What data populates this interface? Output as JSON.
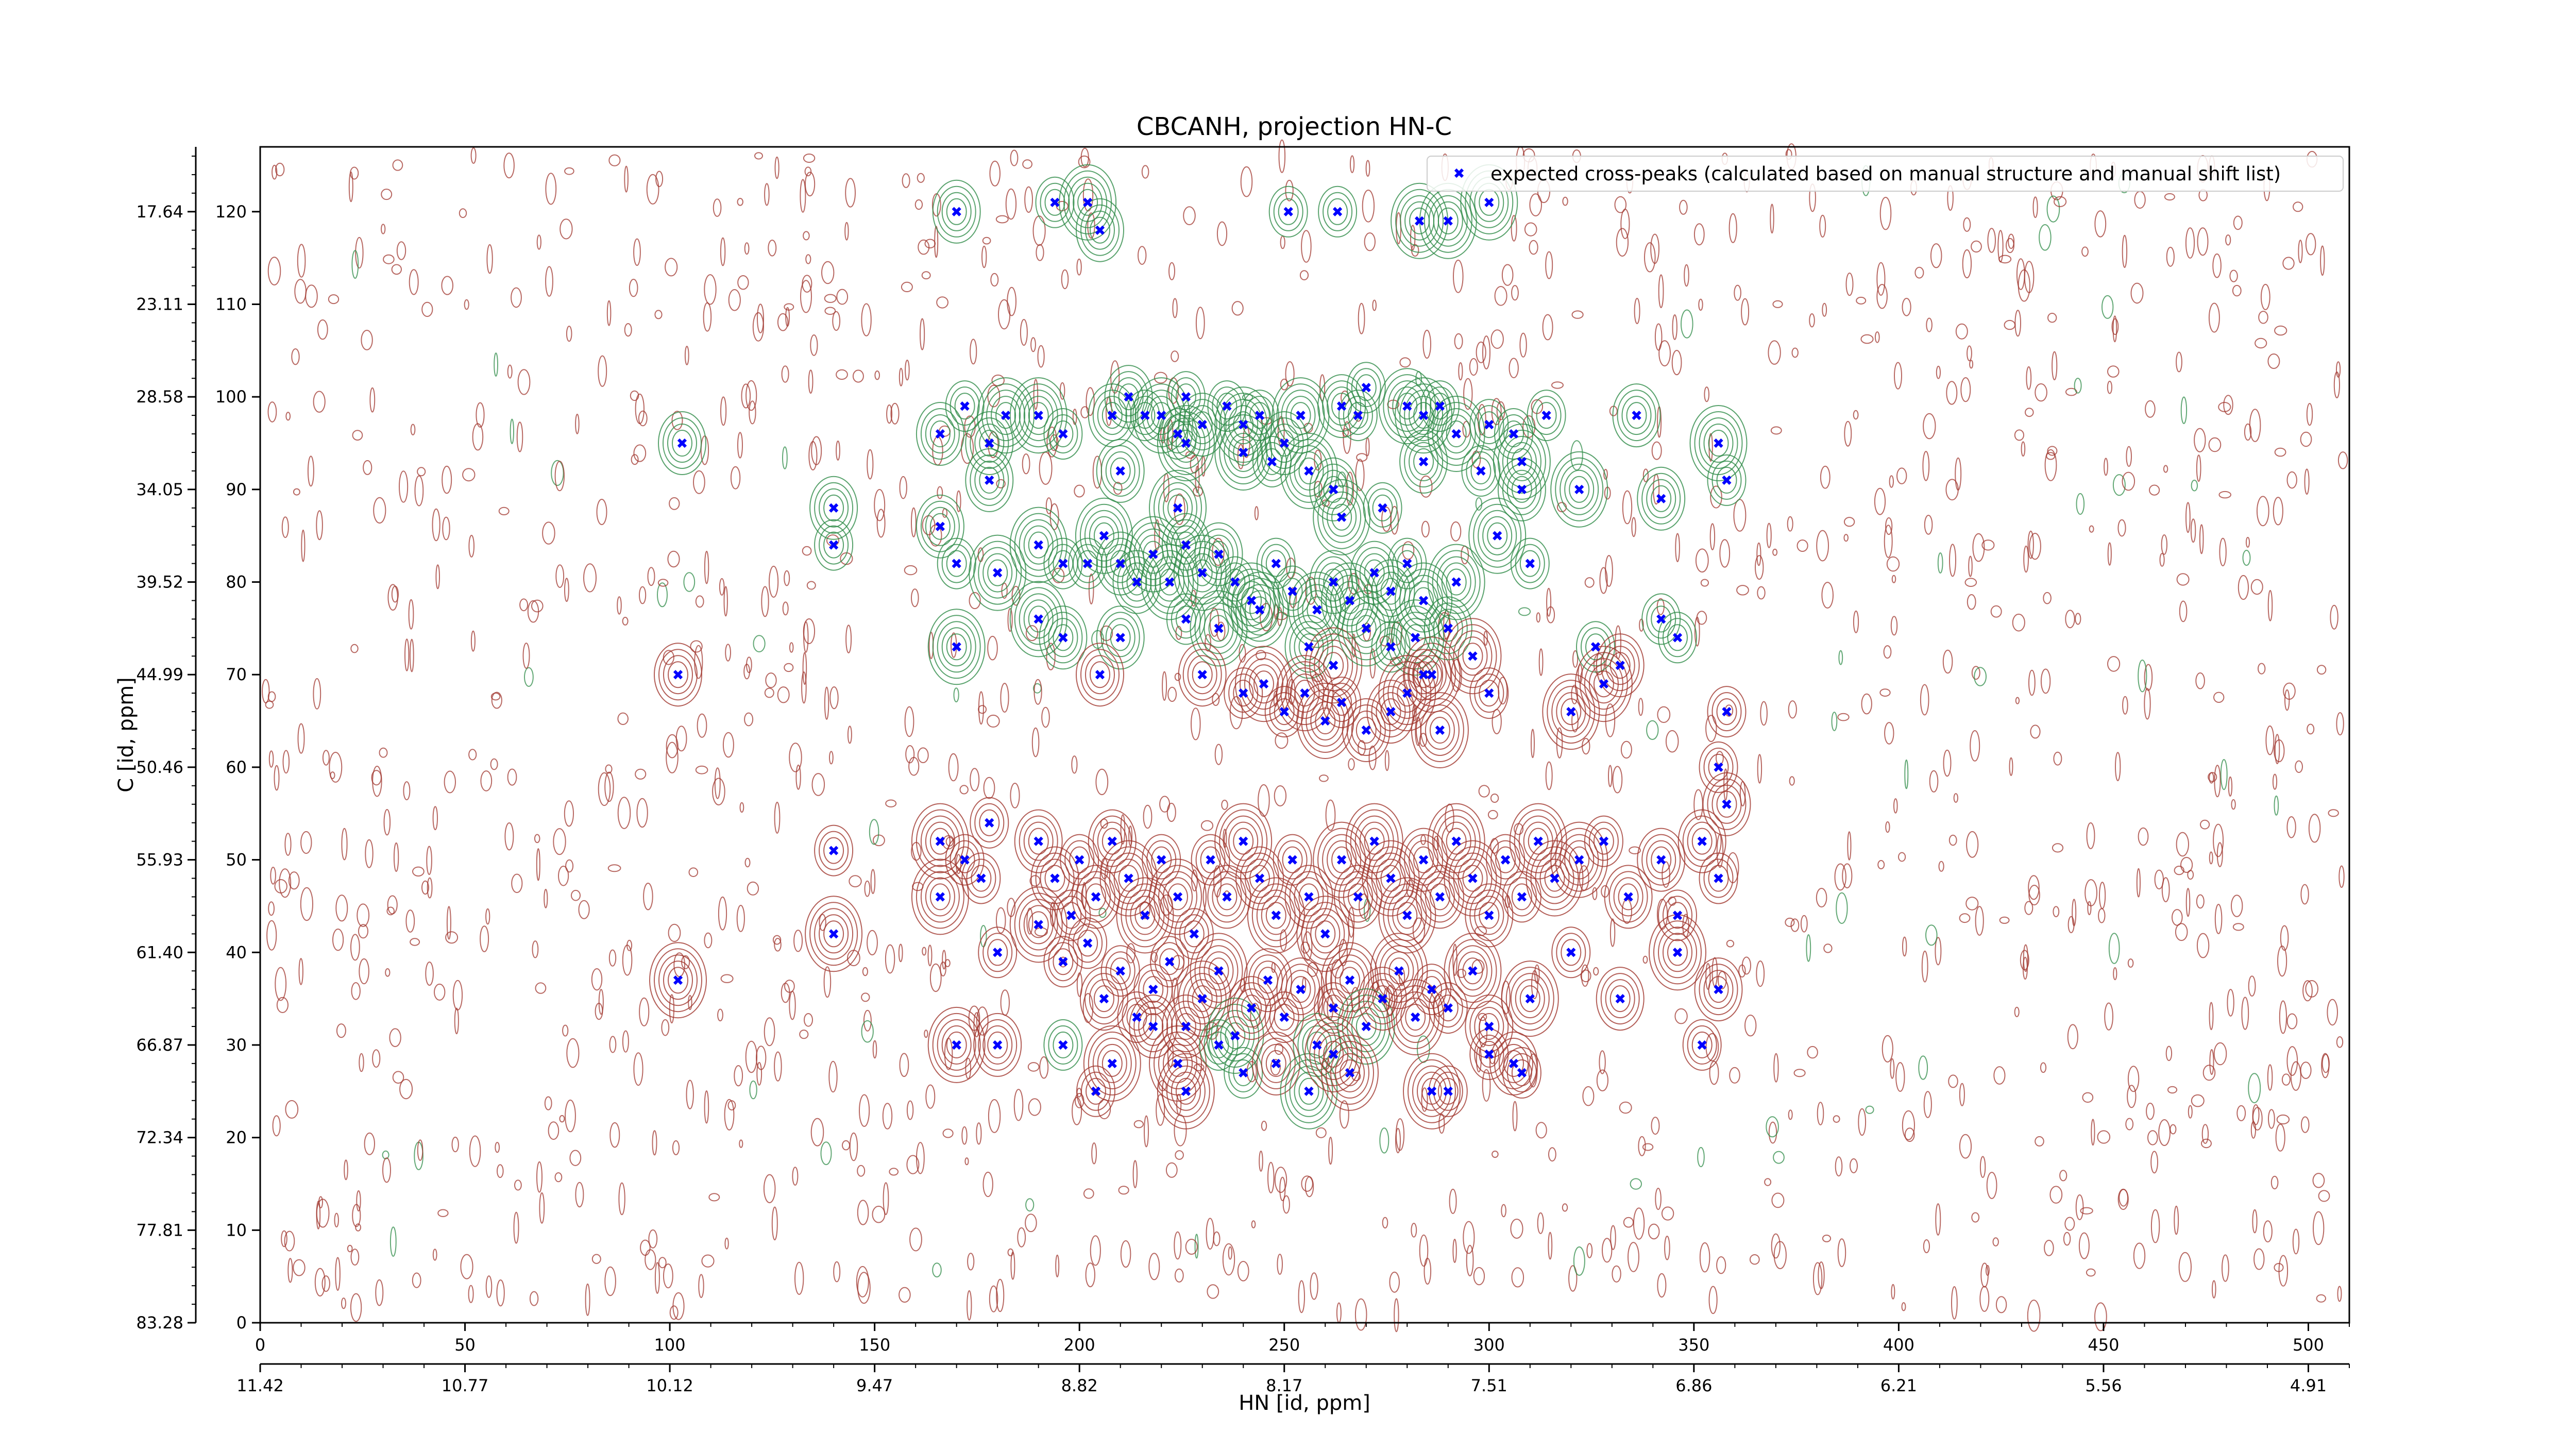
{
  "chart_data": {
    "type": "scatter",
    "title": "CBCANH, projection HN-C",
    "xlabel": "HN [id, ppm]",
    "ylabel": "C [id, ppm]",
    "xlim": [
      0,
      510
    ],
    "ylim": [
      0,
      127
    ],
    "x_ticks": [
      0,
      50,
      100,
      150,
      200,
      250,
      300,
      350,
      400,
      450,
      500
    ],
    "x_ppm_ticks": [
      "11.42",
      "10.77",
      "10.12",
      "9.47",
      "8.82",
      "8.17",
      "7.51",
      "6.86",
      "6.21",
      "5.56",
      "4.91"
    ],
    "y_ticks": [
      0,
      10,
      20,
      30,
      40,
      50,
      60,
      70,
      80,
      90,
      100,
      110,
      120
    ],
    "y_ppm_ticks": [
      "83.28",
      "77.81",
      "72.34",
      "66.87",
      "61.40",
      "55.93",
      "50.46",
      "44.99",
      "39.52",
      "34.05",
      "28.58",
      "23.11",
      "17.64"
    ],
    "legend": {
      "position": "top-right",
      "label": "expected cross-peaks (calculated based on manual structure and manual shift list)"
    },
    "colors": {
      "positive_contour": "#a0362d",
      "negative_contour": "#2e8b47",
      "marker": "#0000ff",
      "axis": "#000000"
    },
    "series": [
      {
        "name": "expected cross-peaks (calculated based on manual structure and manual shift list)",
        "marker": "x",
        "points": [
          [
            170,
            120
          ],
          [
            194,
            121
          ],
          [
            202,
            121
          ],
          [
            205,
            118
          ],
          [
            251,
            120
          ],
          [
            263,
            120
          ],
          [
            283,
            119
          ],
          [
            290,
            119
          ],
          [
            300,
            121
          ],
          [
            103,
            95
          ],
          [
            166,
            96
          ],
          [
            172,
            99
          ],
          [
            178,
            95
          ],
          [
            182,
            98
          ],
          [
            178,
            91
          ],
          [
            190,
            98
          ],
          [
            196,
            96
          ],
          [
            208,
            98
          ],
          [
            212,
            100
          ],
          [
            216,
            98
          ],
          [
            220,
            98
          ],
          [
            224,
            96
          ],
          [
            226,
            100
          ],
          [
            230,
            97
          ],
          [
            236,
            99
          ],
          [
            240,
            97
          ],
          [
            244,
            98
          ],
          [
            250,
            95
          ],
          [
            254,
            98
          ],
          [
            264,
            99
          ],
          [
            268,
            98
          ],
          [
            270,
            101
          ],
          [
            280,
            99
          ],
          [
            284,
            98
          ],
          [
            288,
            99
          ],
          [
            300,
            97
          ],
          [
            306,
            96
          ],
          [
            308,
            93
          ],
          [
            314,
            98
          ],
          [
            210,
            92
          ],
          [
            226,
            95
          ],
          [
            240,
            94
          ],
          [
            247,
            93
          ],
          [
            256,
            92
          ],
          [
            262,
            90
          ],
          [
            274,
            88
          ],
          [
            298,
            92
          ],
          [
            308,
            90
          ],
          [
            322,
            90
          ],
          [
            284,
            93
          ],
          [
            292,
            96
          ],
          [
            336,
            98
          ],
          [
            342,
            89
          ],
          [
            356,
            95
          ],
          [
            358,
            91
          ],
          [
            224,
            88
          ],
          [
            264,
            87
          ],
          [
            140,
            88
          ],
          [
            140,
            84
          ],
          [
            166,
            86
          ],
          [
            170,
            82
          ],
          [
            180,
            81
          ],
          [
            190,
            84
          ],
          [
            196,
            82
          ],
          [
            202,
            82
          ],
          [
            206,
            85
          ],
          [
            210,
            82
          ],
          [
            214,
            80
          ],
          [
            218,
            83
          ],
          [
            222,
            80
          ],
          [
            226,
            84
          ],
          [
            230,
            81
          ],
          [
            234,
            83
          ],
          [
            238,
            80
          ],
          [
            242,
            78
          ],
          [
            248,
            82
          ],
          [
            252,
            79
          ],
          [
            258,
            77
          ],
          [
            262,
            80
          ],
          [
            266,
            78
          ],
          [
            272,
            81
          ],
          [
            276,
            79
          ],
          [
            280,
            82
          ],
          [
            284,
            78
          ],
          [
            292,
            80
          ],
          [
            302,
            85
          ],
          [
            310,
            82
          ],
          [
            190,
            76
          ],
          [
            196,
            74
          ],
          [
            210,
            74
          ],
          [
            226,
            76
          ],
          [
            234,
            75
          ],
          [
            244,
            77
          ],
          [
            256,
            73
          ],
          [
            262,
            71
          ],
          [
            270,
            75
          ],
          [
            276,
            73
          ],
          [
            282,
            74
          ],
          [
            286,
            70
          ],
          [
            290,
            75
          ],
          [
            296,
            72
          ],
          [
            326,
            73
          ],
          [
            332,
            71
          ],
          [
            342,
            76
          ],
          [
            346,
            74
          ],
          [
            170,
            73
          ],
          [
            205,
            70
          ],
          [
            102,
            70
          ],
          [
            230,
            70
          ],
          [
            240,
            68
          ],
          [
            245,
            69
          ],
          [
            250,
            66
          ],
          [
            255,
            68
          ],
          [
            260,
            65
          ],
          [
            264,
            67
          ],
          [
            270,
            64
          ],
          [
            276,
            66
          ],
          [
            280,
            68
          ],
          [
            284,
            70
          ],
          [
            288,
            64
          ],
          [
            300,
            68
          ],
          [
            320,
            66
          ],
          [
            328,
            69
          ],
          [
            358,
            66
          ],
          [
            356,
            60
          ],
          [
            140,
            51
          ],
          [
            140,
            42
          ],
          [
            166,
            52
          ],
          [
            166,
            46
          ],
          [
            172,
            50
          ],
          [
            178,
            54
          ],
          [
            176,
            48
          ],
          [
            190,
            52
          ],
          [
            194,
            48
          ],
          [
            198,
            44
          ],
          [
            200,
            50
          ],
          [
            204,
            46
          ],
          [
            208,
            52
          ],
          [
            212,
            48
          ],
          [
            216,
            44
          ],
          [
            220,
            50
          ],
          [
            224,
            46
          ],
          [
            228,
            42
          ],
          [
            232,
            50
          ],
          [
            236,
            46
          ],
          [
            240,
            52
          ],
          [
            244,
            48
          ],
          [
            248,
            44
          ],
          [
            252,
            50
          ],
          [
            256,
            46
          ],
          [
            260,
            42
          ],
          [
            264,
            50
          ],
          [
            268,
            46
          ],
          [
            272,
            52
          ],
          [
            276,
            48
          ],
          [
            280,
            44
          ],
          [
            284,
            50
          ],
          [
            288,
            46
          ],
          [
            292,
            52
          ],
          [
            296,
            48
          ],
          [
            300,
            44
          ],
          [
            304,
            50
          ],
          [
            308,
            46
          ],
          [
            312,
            52
          ],
          [
            316,
            48
          ],
          [
            322,
            50
          ],
          [
            328,
            52
          ],
          [
            334,
            46
          ],
          [
            342,
            50
          ],
          [
            346,
            44
          ],
          [
            352,
            52
          ],
          [
            356,
            48
          ],
          [
            358,
            56
          ],
          [
            102,
            37
          ],
          [
            180,
            40
          ],
          [
            190,
            43
          ],
          [
            196,
            39
          ],
          [
            202,
            41
          ],
          [
            206,
            35
          ],
          [
            210,
            38
          ],
          [
            214,
            33
          ],
          [
            218,
            36
          ],
          [
            222,
            39
          ],
          [
            226,
            32
          ],
          [
            230,
            35
          ],
          [
            234,
            38
          ],
          [
            238,
            31
          ],
          [
            242,
            34
          ],
          [
            246,
            37
          ],
          [
            250,
            33
          ],
          [
            254,
            36
          ],
          [
            258,
            30
          ],
          [
            262,
            34
          ],
          [
            266,
            37
          ],
          [
            270,
            32
          ],
          [
            274,
            35
          ],
          [
            278,
            38
          ],
          [
            282,
            33
          ],
          [
            286,
            36
          ],
          [
            290,
            34
          ],
          [
            296,
            38
          ],
          [
            300,
            32
          ],
          [
            306,
            28
          ],
          [
            310,
            35
          ],
          [
            320,
            40
          ],
          [
            332,
            35
          ],
          [
            346,
            40
          ],
          [
            356,
            36
          ],
          [
            352,
            30
          ],
          [
            170,
            30
          ],
          [
            180,
            30
          ],
          [
            196,
            30
          ],
          [
            208,
            28
          ],
          [
            218,
            32
          ],
          [
            224,
            28
          ],
          [
            234,
            30
          ],
          [
            240,
            27
          ],
          [
            248,
            28
          ],
          [
            256,
            25
          ],
          [
            262,
            29
          ],
          [
            266,
            27
          ],
          [
            286,
            25
          ],
          [
            290,
            25
          ],
          [
            300,
            29
          ],
          [
            308,
            27
          ],
          [
            204,
            25
          ],
          [
            226,
            25
          ]
        ]
      }
    ]
  }
}
